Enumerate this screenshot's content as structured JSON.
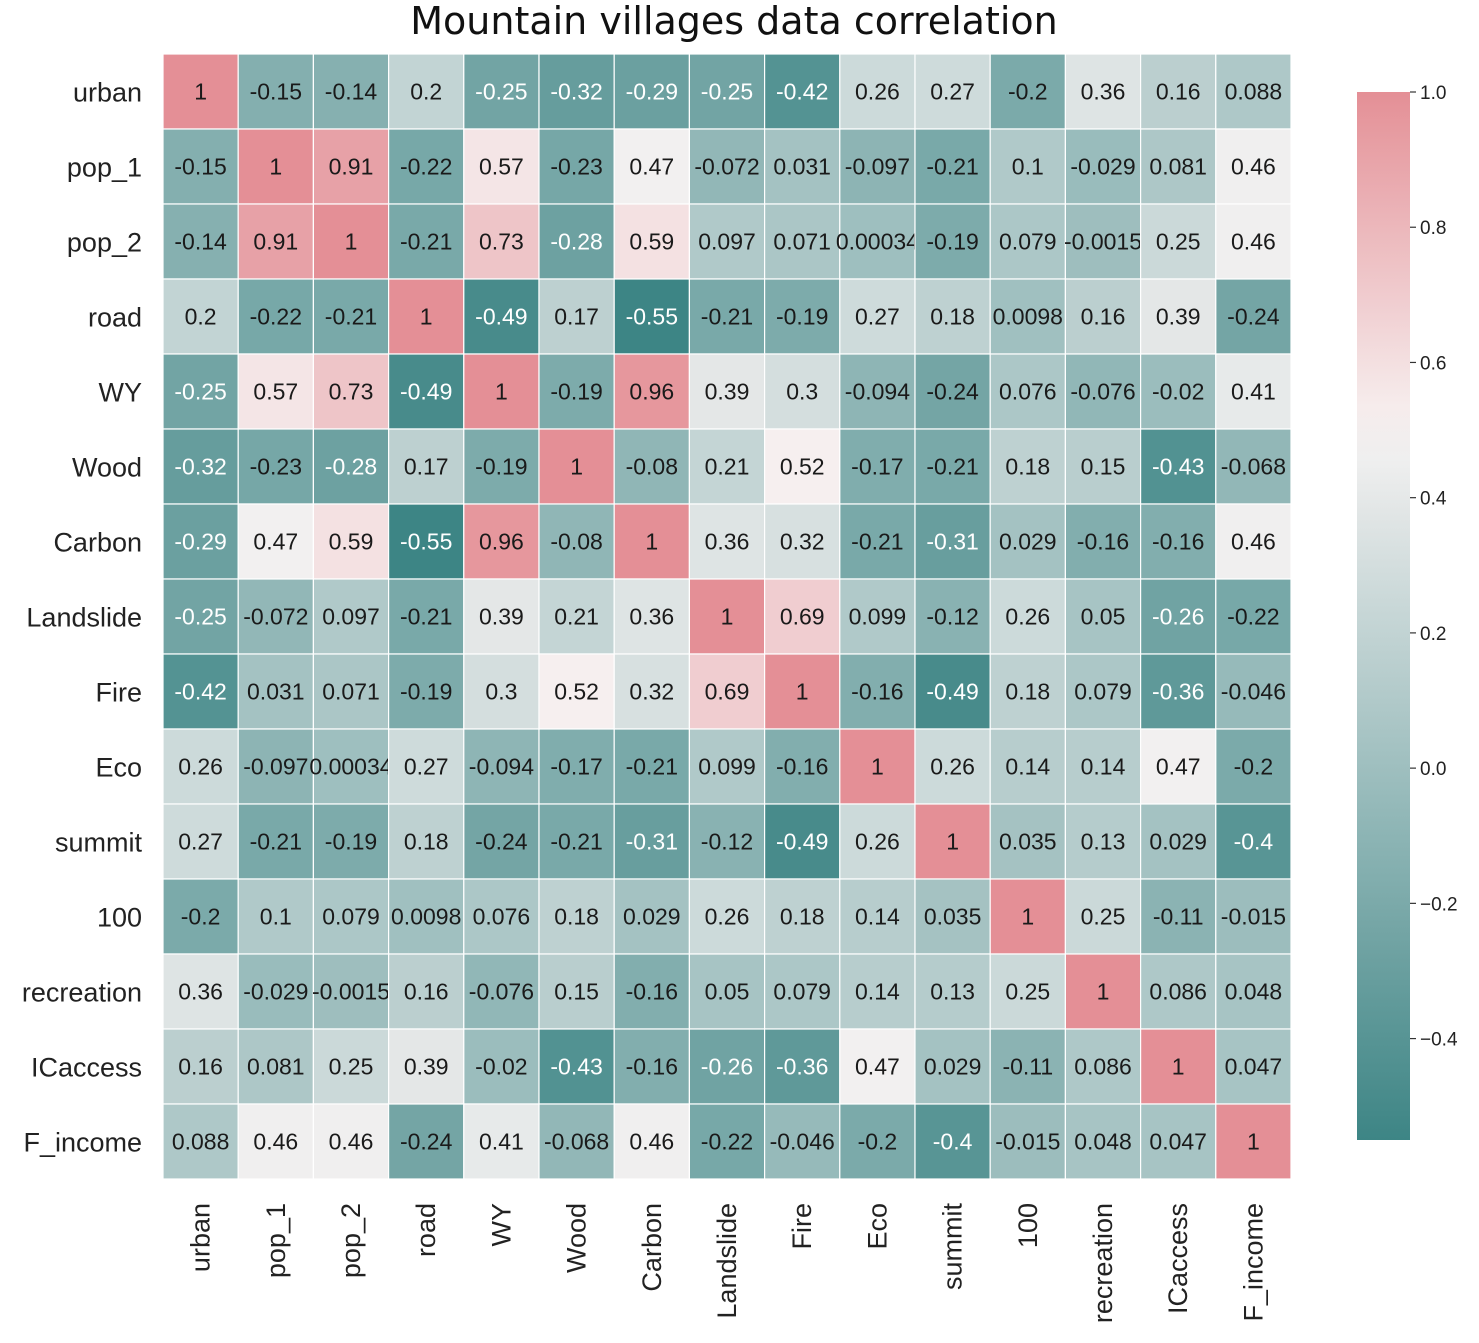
{
  "chart_data": {
    "type": "heatmap",
    "title": "Mountain villages data correlation",
    "rows": [
      "urban",
      "pop_1",
      "pop_2",
      "road",
      "WY",
      "Wood",
      "Carbon",
      "Landslide",
      "Fire",
      "Eco",
      "summit",
      "100",
      "recreation",
      "ICaccess",
      "F_income"
    ],
    "columns": [
      "urban",
      "pop_1",
      "pop_2",
      "road",
      "WY",
      "Wood",
      "Carbon",
      "Landslide",
      "Fire",
      "Eco",
      "summit",
      "100",
      "recreation",
      "ICaccess",
      "F_income"
    ],
    "values": [
      [
        1,
        -0.15,
        -0.14,
        0.2,
        -0.25,
        -0.32,
        -0.29,
        -0.25,
        -0.42,
        0.26,
        0.27,
        -0.2,
        0.36,
        0.16,
        0.088
      ],
      [
        -0.15,
        1,
        0.91,
        -0.22,
        0.57,
        -0.23,
        0.47,
        -0.072,
        0.031,
        -0.097,
        -0.21,
        0.1,
        -0.029,
        0.081,
        0.46
      ],
      [
        -0.14,
        0.91,
        1,
        -0.21,
        0.73,
        -0.28,
        0.59,
        0.097,
        0.071,
        0.00034,
        -0.19,
        0.079,
        -0.0015,
        0.25,
        0.46
      ],
      [
        0.2,
        -0.22,
        -0.21,
        1,
        -0.49,
        0.17,
        -0.55,
        -0.21,
        -0.19,
        0.27,
        0.18,
        0.0098,
        0.16,
        0.39,
        -0.24
      ],
      [
        -0.25,
        0.57,
        0.73,
        -0.49,
        1,
        -0.19,
        0.96,
        0.39,
        0.3,
        -0.094,
        -0.24,
        0.076,
        -0.076,
        -0.02,
        0.41
      ],
      [
        -0.32,
        -0.23,
        -0.28,
        0.17,
        -0.19,
        1,
        -0.08,
        0.21,
        0.52,
        -0.17,
        -0.21,
        0.18,
        0.15,
        -0.43,
        -0.068
      ],
      [
        -0.29,
        0.47,
        0.59,
        -0.55,
        0.96,
        -0.08,
        1,
        0.36,
        0.32,
        -0.21,
        -0.31,
        0.029,
        -0.16,
        -0.16,
        0.46
      ],
      [
        -0.25,
        -0.072,
        0.097,
        -0.21,
        0.39,
        0.21,
        0.36,
        1,
        0.69,
        0.099,
        -0.12,
        0.26,
        0.05,
        -0.26,
        -0.22
      ],
      [
        -0.42,
        0.031,
        0.071,
        -0.19,
        0.3,
        0.52,
        0.32,
        0.69,
        1,
        -0.16,
        -0.49,
        0.18,
        0.079,
        -0.36,
        -0.046
      ],
      [
        0.26,
        -0.097,
        0.00034,
        0.27,
        -0.094,
        -0.17,
        -0.21,
        0.099,
        -0.16,
        1,
        0.26,
        0.14,
        0.14,
        0.47,
        -0.2
      ],
      [
        0.27,
        -0.21,
        -0.19,
        0.18,
        -0.24,
        -0.21,
        -0.31,
        -0.12,
        -0.49,
        0.26,
        1,
        0.035,
        0.13,
        0.029,
        -0.4
      ],
      [
        -0.2,
        0.1,
        0.079,
        0.0098,
        0.076,
        0.18,
        0.029,
        0.26,
        0.18,
        0.14,
        0.035,
        1,
        0.25,
        -0.11,
        -0.015
      ],
      [
        0.36,
        -0.029,
        -0.0015,
        0.16,
        -0.076,
        0.15,
        -0.16,
        0.05,
        0.079,
        0.14,
        0.13,
        0.25,
        1,
        0.086,
        0.048
      ],
      [
        0.16,
        0.081,
        0.25,
        0.39,
        -0.02,
        -0.43,
        -0.16,
        -0.26,
        -0.36,
        0.47,
        0.029,
        -0.11,
        0.086,
        1,
        0.047
      ],
      [
        0.088,
        0.46,
        0.46,
        -0.24,
        0.41,
        -0.068,
        0.46,
        -0.22,
        -0.046,
        -0.2,
        -0.4,
        -0.015,
        0.048,
        0.047,
        1
      ]
    ],
    "cell_labels": [
      [
        "1",
        "-0.15",
        "-0.14",
        "0.2",
        "-0.25",
        "-0.32",
        "-0.29",
        "-0.25",
        "-0.42",
        "0.26",
        "0.27",
        "-0.2",
        "0.36",
        "0.16",
        "0.088"
      ],
      [
        "-0.15",
        "1",
        "0.91",
        "-0.22",
        "0.57",
        "-0.23",
        "0.47",
        "-0.072",
        "0.031",
        "-0.097",
        "-0.21",
        "0.1",
        "-0.029",
        "0.081",
        "0.46"
      ],
      [
        "-0.14",
        "0.91",
        "1",
        "-0.21",
        "0.73",
        "-0.28",
        "0.59",
        "0.097",
        "0.071",
        "0.00034",
        "-0.19",
        "0.079",
        "-0.0015",
        "0.25",
        "0.46"
      ],
      [
        "0.2",
        "-0.22",
        "-0.21",
        "1",
        "-0.49",
        "0.17",
        "-0.55",
        "-0.21",
        "-0.19",
        "0.27",
        "0.18",
        "0.0098",
        "0.16",
        "0.39",
        "-0.24"
      ],
      [
        "-0.25",
        "0.57",
        "0.73",
        "-0.49",
        "1",
        "-0.19",
        "0.96",
        "0.39",
        "0.3",
        "-0.094",
        "-0.24",
        "0.076",
        "-0.076",
        "-0.02",
        "0.41"
      ],
      [
        "-0.32",
        "-0.23",
        "-0.28",
        "0.17",
        "-0.19",
        "1",
        "-0.08",
        "0.21",
        "0.52",
        "-0.17",
        "-0.21",
        "0.18",
        "0.15",
        "-0.43",
        "-0.068"
      ],
      [
        "-0.29",
        "0.47",
        "0.59",
        "-0.55",
        "0.96",
        "-0.08",
        "1",
        "0.36",
        "0.32",
        "-0.21",
        "-0.31",
        "0.029",
        "-0.16",
        "-0.16",
        "0.46"
      ],
      [
        "-0.25",
        "-0.072",
        "0.097",
        "-0.21",
        "0.39",
        "0.21",
        "0.36",
        "1",
        "0.69",
        "0.099",
        "-0.12",
        "0.26",
        "0.05",
        "-0.26",
        "-0.22"
      ],
      [
        "-0.42",
        "0.031",
        "0.071",
        "-0.19",
        "0.3",
        "0.52",
        "0.32",
        "0.69",
        "1",
        "-0.16",
        "-0.49",
        "0.18",
        "0.079",
        "-0.36",
        "-0.046"
      ],
      [
        "0.26",
        "-0.097",
        "0.00034",
        "0.27",
        "-0.094",
        "-0.17",
        "-0.21",
        "0.099",
        "-0.16",
        "1",
        "0.26",
        "0.14",
        "0.14",
        "0.47",
        "-0.2"
      ],
      [
        "0.27",
        "-0.21",
        "-0.19",
        "0.18",
        "-0.24",
        "-0.21",
        "-0.31",
        "-0.12",
        "-0.49",
        "0.26",
        "1",
        "0.035",
        "0.13",
        "0.029",
        "-0.4"
      ],
      [
        "-0.2",
        "0.1",
        "0.079",
        "0.0098",
        "0.076",
        "0.18",
        "0.029",
        "0.26",
        "0.18",
        "0.14",
        "0.035",
        "1",
        "0.25",
        "-0.11",
        "-0.015"
      ],
      [
        "0.36",
        "-0.029",
        "-0.0015",
        "0.16",
        "-0.076",
        "0.15",
        "-0.16",
        "0.05",
        "0.079",
        "0.14",
        "0.13",
        "0.25",
        "1",
        "0.086",
        "0.048"
      ],
      [
        "0.16",
        "0.081",
        "0.25",
        "0.39",
        "-0.02",
        "-0.43",
        "-0.16",
        "-0.26",
        "-0.36",
        "0.47",
        "0.029",
        "-0.11",
        "0.086",
        "1",
        "0.047"
      ],
      [
        "0.088",
        "0.46",
        "0.46",
        "-0.24",
        "0.41",
        "-0.068",
        "0.46",
        "-0.22",
        "-0.046",
        "-0.2",
        "-0.4",
        "-0.015",
        "0.048",
        "0.047",
        "1"
      ]
    ],
    "colorbar": {
      "range": [
        -0.55,
        1.0
      ],
      "ticks": [
        1.0,
        0.8,
        0.6,
        0.4,
        0.2,
        0.0,
        -0.2,
        -0.4
      ],
      "tick_labels": [
        "1.0",
        "0.8",
        "0.6",
        "0.4",
        "0.2",
        "0.0",
        "−0.2",
        "−0.4"
      ],
      "color_low": "#3d8585",
      "color_mid": "#f7f3f3",
      "color_high": "#e48f96",
      "center": 0.5
    }
  }
}
